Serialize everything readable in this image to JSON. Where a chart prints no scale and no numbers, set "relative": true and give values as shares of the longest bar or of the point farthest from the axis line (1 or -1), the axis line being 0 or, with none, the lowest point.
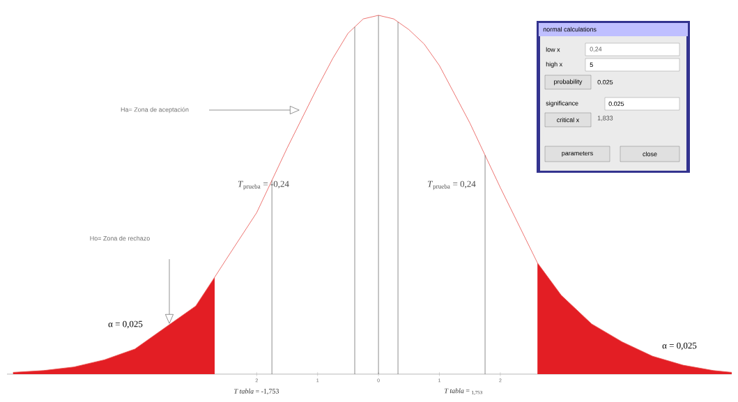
{
  "chart_data": {
    "type": "line",
    "relative": true,
    "xlim": [
      -6.1,
      5.8
    ],
    "xticks": [
      {
        "value": -2,
        "label": "2"
      },
      {
        "value": -1,
        "label": "1"
      },
      0,
      1,
      {
        "value": 2,
        "label": "2"
      }
    ],
    "series": [
      {
        "color": "#e8534f",
        "x": [
          -6.0,
          -5.5,
          -5.0,
          -4.5,
          -4.0,
          -3.5,
          -3.0,
          -2.69,
          -2.5,
          -2.0,
          -1.5,
          -1.0,
          -0.75,
          -0.5,
          -0.25,
          0,
          0.25,
          0.5,
          0.75,
          1.0,
          1.5,
          2.0,
          2.61,
          3.0,
          3.5,
          4.0,
          4.5,
          5.0,
          5.5,
          5.8
        ],
        "values": [
          0.005,
          0.01,
          0.02,
          0.04,
          0.07,
          0.13,
          0.19,
          0.27,
          0.32,
          0.45,
          0.63,
          0.8,
          0.88,
          0.95,
          0.99,
          1.0,
          0.99,
          0.96,
          0.92,
          0.86,
          0.7,
          0.52,
          0.31,
          0.22,
          0.14,
          0.09,
          0.05,
          0.025,
          0.01,
          0.005
        ]
      },
      {
        "type": "area",
        "color": "#e31e24",
        "x": [
          -6.0,
          -5.5,
          -5.0,
          -4.5,
          -4.0,
          -3.5,
          -3.0,
          -2.69
        ],
        "values": [
          0.005,
          0.01,
          0.02,
          0.04,
          0.07,
          0.13,
          0.19,
          0.27
        ]
      },
      {
        "type": "area",
        "color": "#e31e24",
        "x": [
          2.61,
          3.0,
          3.5,
          4.0,
          4.5,
          5.0,
          5.5,
          5.8
        ],
        "values": [
          0.31,
          0.22,
          0.14,
          0.09,
          0.05,
          0.025,
          0.01,
          0.005
        ]
      }
    ],
    "ref_lines": [
      {
        "axis": "x",
        "value": -1.75,
        "label": null
      },
      {
        "axis": "x",
        "value": -0.39,
        "label": null
      },
      {
        "axis": "x",
        "value": 0,
        "label": null
      },
      {
        "axis": "x",
        "value": 0.32,
        "label": null
      },
      {
        "axis": "x",
        "value": 1.75,
        "label": null
      }
    ],
    "annotations": [
      "Ha= Zona de aceptación",
      "Ho= Zona de rechazo",
      "α = 0,025",
      "α = 0,025",
      "*T*$_{prueba}$ = -0,24",
      "*T*$_{prueba}$ = 0,24",
      "*T tabla* = -1,753",
      "*T tabla* = $_{1,753}$",
      "normal calculations",
      "low x",
      "0,24",
      "high x",
      "5",
      "probability",
      "0.025",
      "significance",
      "0.025",
      "critical x",
      "1,833",
      "parameters",
      "close"
    ]
  }
}
